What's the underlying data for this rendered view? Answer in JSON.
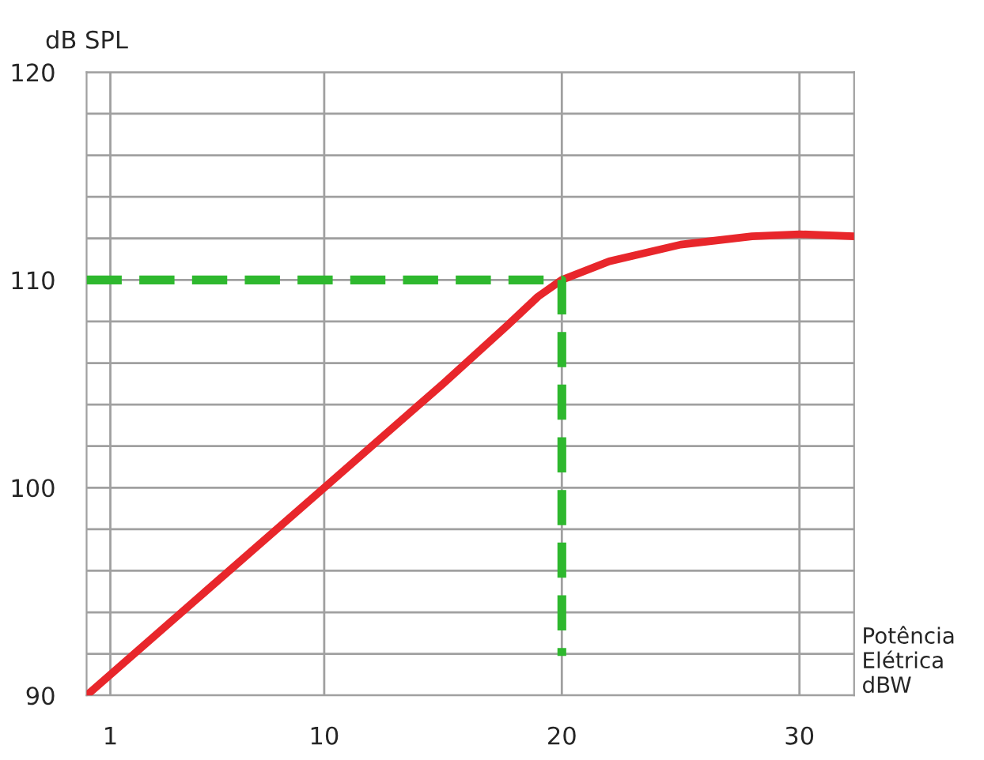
{
  "chart_data": {
    "type": "line",
    "xlabel": "Potência\nElétrica\ndBW",
    "ylabel": "dB SPL",
    "xlim": [
      0,
      32.3
    ],
    "ylim": [
      90,
      120
    ],
    "xticks": [
      1,
      10,
      20,
      30
    ],
    "yticks": [
      90,
      {
        "value": 92,
        "label": null
      },
      {
        "value": 94,
        "label": null
      },
      {
        "value": 96,
        "label": null
      },
      {
        "value": 98,
        "label": null
      },
      100,
      {
        "value": 102,
        "label": null
      },
      {
        "value": 104,
        "label": null
      },
      {
        "value": 106,
        "label": null
      },
      {
        "value": 108,
        "label": null
      },
      110,
      {
        "value": 112,
        "label": null
      },
      {
        "value": 114,
        "label": null
      },
      {
        "value": 116,
        "label": null
      },
      {
        "value": 118,
        "label": null
      },
      120
    ],
    "grid": true,
    "series": [
      {
        "color": "#e8262b",
        "line_style": "solid",
        "x": [
          0,
          5,
          10,
          15,
          17.7,
          19,
          20,
          22,
          25,
          28,
          30,
          32.3
        ],
        "values": [
          90,
          95,
          100,
          105,
          107.8,
          109.2,
          110,
          110.9,
          111.7,
          112.1,
          112.2,
          112.1
        ]
      },
      {
        "color": "#2eb82e",
        "line_style": "dashed",
        "x": [
          0,
          20,
          20
        ],
        "values": [
          110,
          110,
          91.9
        ]
      }
    ]
  }
}
